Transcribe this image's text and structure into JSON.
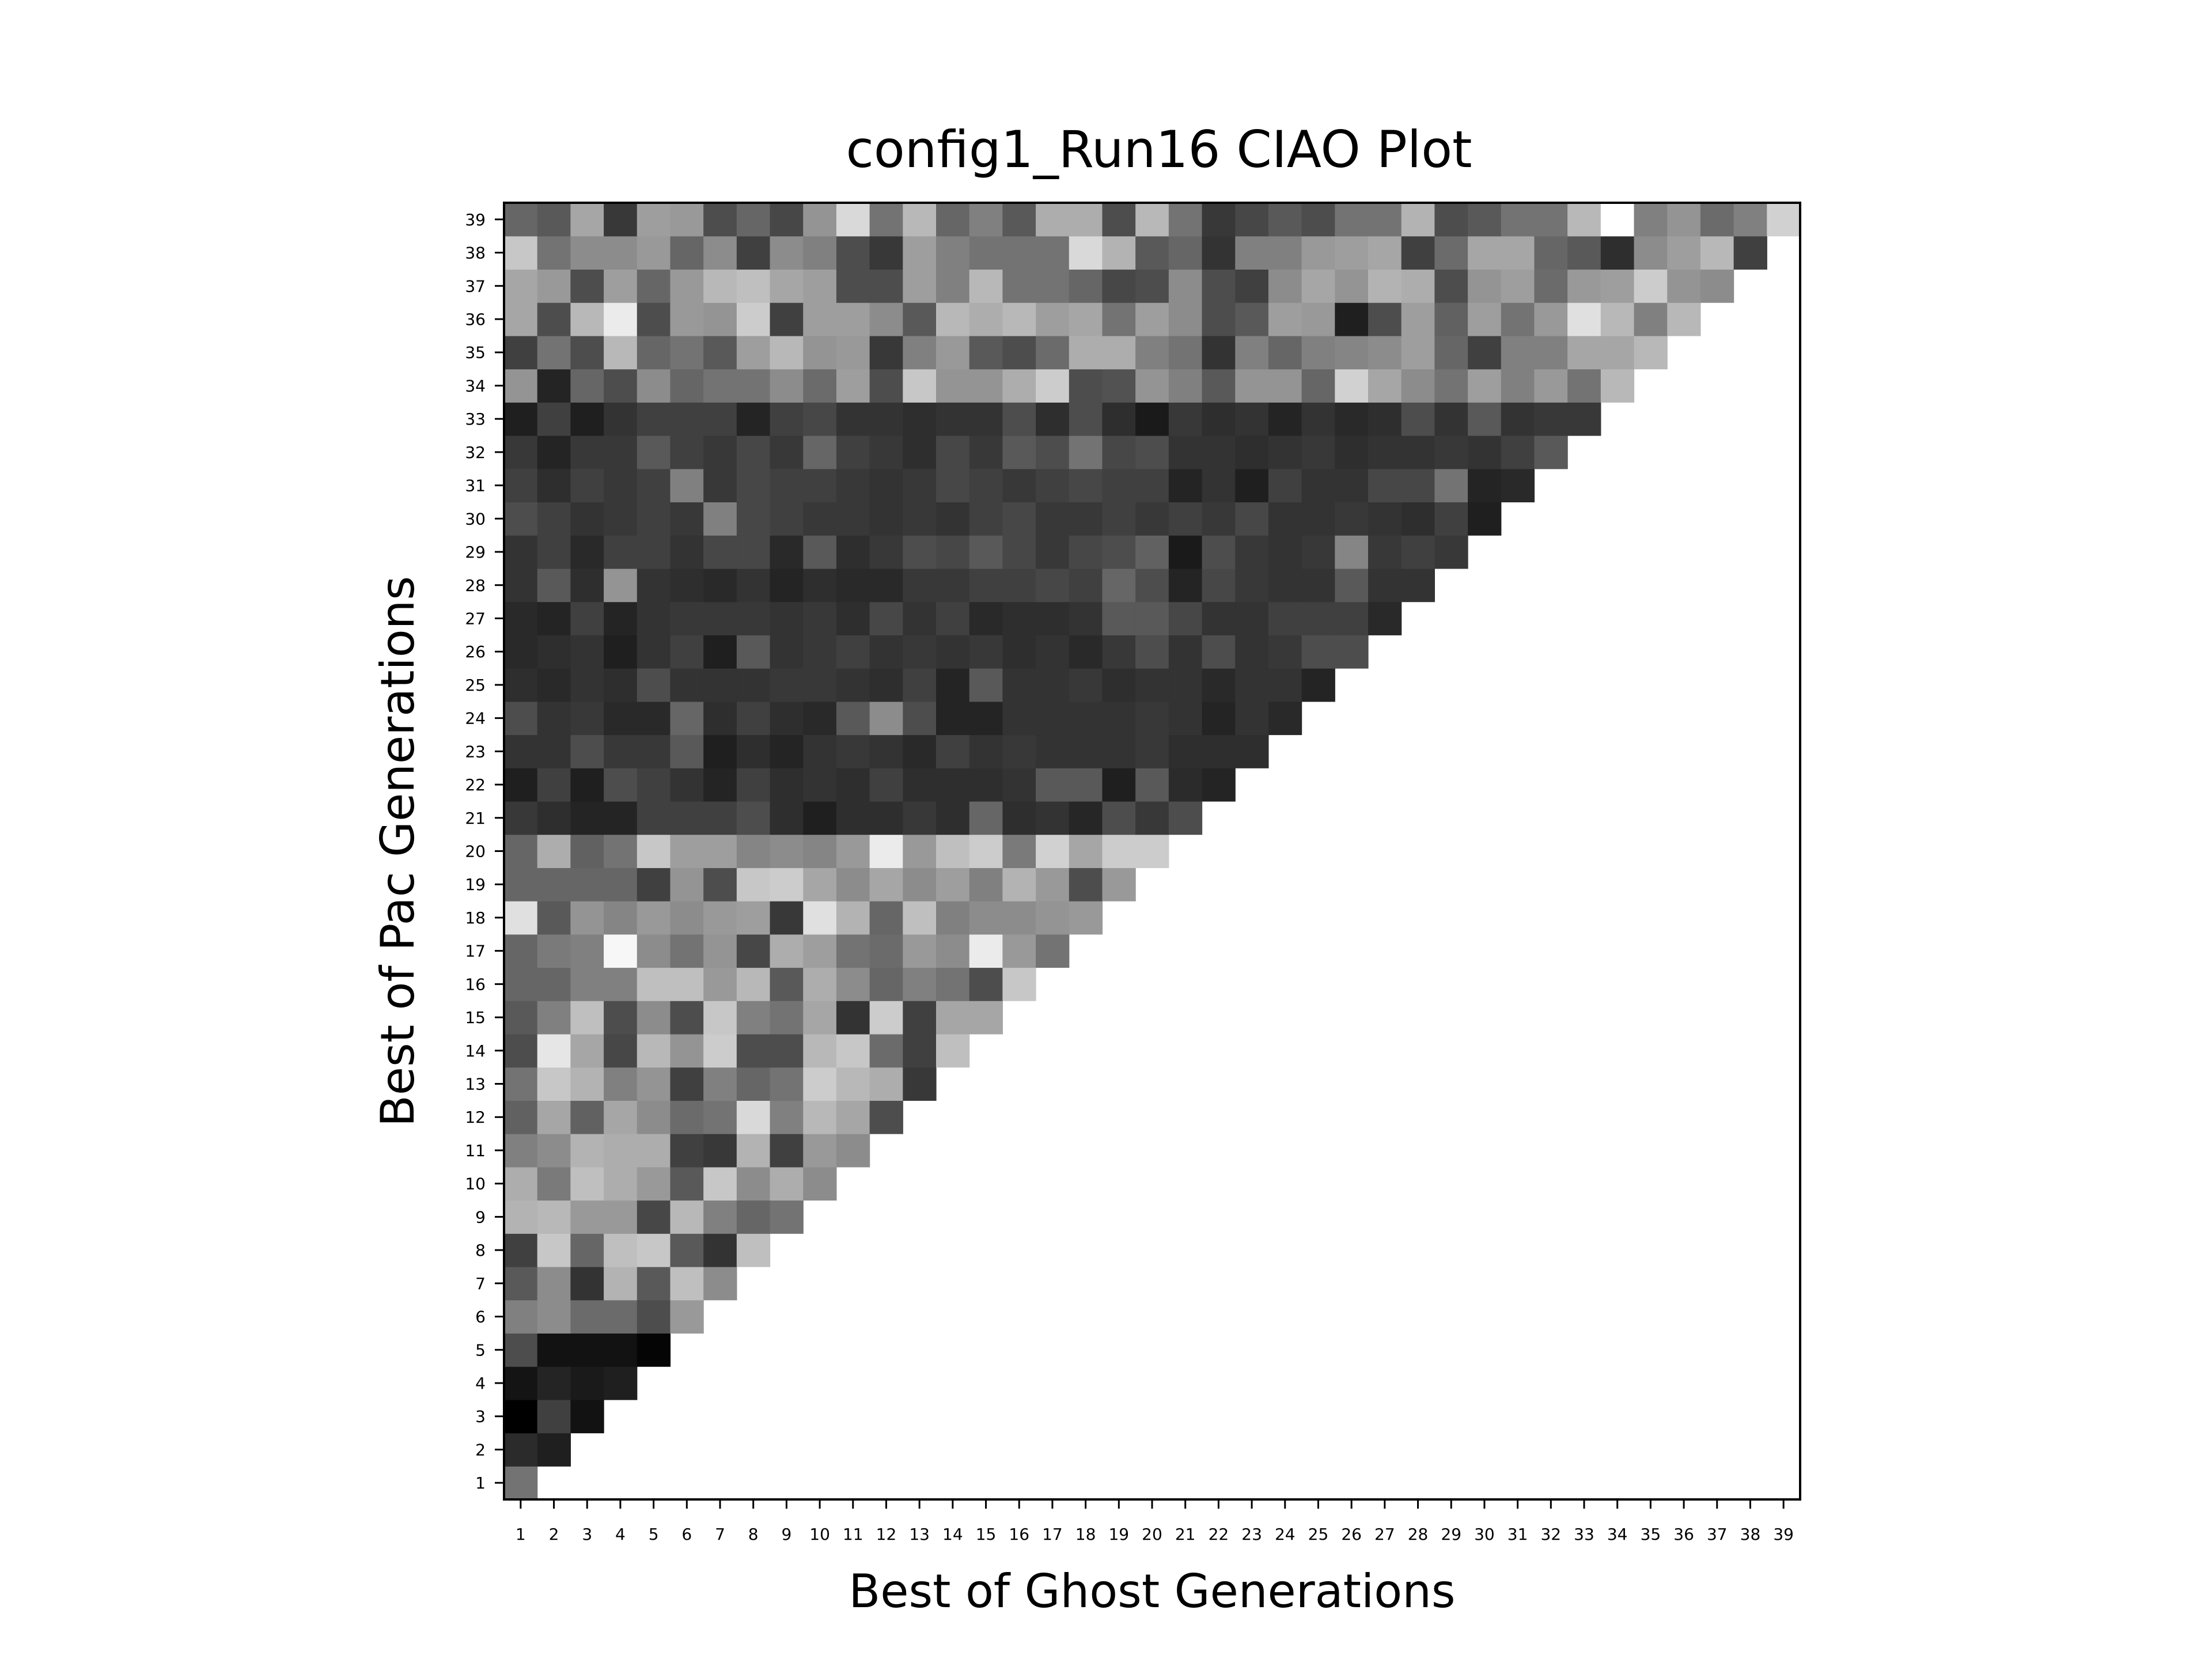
{
  "chart_data": {
    "type": "heatmap",
    "title": "config1_Run16 CIAO Plot",
    "xlabel": "Best of Ghost Generations",
    "ylabel": "Best of Pac Generations",
    "x_ticks": [
      "1",
      "2",
      "3",
      "4",
      "5",
      "6",
      "7",
      "8",
      "9",
      "10",
      "11",
      "12",
      "13",
      "14",
      "15",
      "16",
      "17",
      "18",
      "19",
      "20",
      "21",
      "22",
      "23",
      "24",
      "25",
      "26",
      "27",
      "28",
      "29",
      "30",
      "31",
      "32",
      "33",
      "34",
      "35",
      "36",
      "37",
      "38",
      "39"
    ],
    "y_ticks": [
      "1",
      "2",
      "3",
      "4",
      "5",
      "6",
      "7",
      "8",
      "9",
      "10",
      "11",
      "12",
      "13",
      "14",
      "15",
      "16",
      "17",
      "18",
      "19",
      "20",
      "21",
      "22",
      "23",
      "24",
      "25",
      "26",
      "27",
      "28",
      "29",
      "30",
      "31",
      "32",
      "33",
      "34",
      "35",
      "36",
      "37",
      "38",
      "39"
    ],
    "colormap": "grayscale (black = low, white = high)",
    "grid": false,
    "shape": "lower-left triangle; cell (ghost x, pac y) shown for x <= y",
    "rows": [
      {
        "pac": 1,
        "values": [
          0.45
        ]
      },
      {
        "pac": 2,
        "values": [
          0.17,
          0.12
        ]
      },
      {
        "pac": 3,
        "values": [
          0.0,
          0.25,
          0.07
        ]
      },
      {
        "pac": 4,
        "values": [
          0.08,
          0.14,
          0.1,
          0.12
        ]
      },
      {
        "pac": 5,
        "values": [
          0.3,
          0.07,
          0.07,
          0.07,
          0.02
        ]
      },
      {
        "pac": 6,
        "values": [
          0.5,
          0.55,
          0.42,
          0.42,
          0.3,
          0.6
        ]
      },
      {
        "pac": 7,
        "values": [
          0.35,
          0.55,
          0.2,
          0.7,
          0.35,
          0.75,
          0.55
        ]
      },
      {
        "pac": 8,
        "values": [
          0.25,
          0.78,
          0.4,
          0.75,
          0.78,
          0.35,
          0.2,
          0.75
        ]
      },
      {
        "pac": 9,
        "values": [
          0.7,
          0.72,
          0.6,
          0.6,
          0.28,
          0.72,
          0.5,
          0.4,
          0.45
        ]
      },
      {
        "pac": 10,
        "values": [
          0.68,
          0.48,
          0.75,
          0.68,
          0.6,
          0.35,
          0.78,
          0.55,
          0.68,
          0.55
        ]
      },
      {
        "pac": 11,
        "values": [
          0.5,
          0.55,
          0.7,
          0.68,
          0.68,
          0.25,
          0.22,
          0.7,
          0.25,
          0.6,
          0.55
        ]
      },
      {
        "pac": 12,
        "values": [
          0.38,
          0.65,
          0.38,
          0.65,
          0.55,
          0.42,
          0.45,
          0.85,
          0.5,
          0.72,
          0.65,
          0.3
        ]
      },
      {
        "pac": 13,
        "values": [
          0.45,
          0.78,
          0.7,
          0.5,
          0.58,
          0.25,
          0.5,
          0.4,
          0.45,
          0.8,
          0.72,
          0.68,
          0.22
        ]
      },
      {
        "pac": 14,
        "values": [
          0.3,
          0.9,
          0.65,
          0.28,
          0.72,
          0.58,
          0.8,
          0.3,
          0.3,
          0.72,
          0.78,
          0.42,
          0.25,
          0.75
        ]
      },
      {
        "pac": 15,
        "values": [
          0.35,
          0.5,
          0.75,
          0.3,
          0.55,
          0.3,
          0.78,
          0.5,
          0.45,
          0.65,
          0.2,
          0.8,
          0.25,
          0.65,
          0.65
        ]
      },
      {
        "pac": 16,
        "values": [
          0.4,
          0.4,
          0.5,
          0.5,
          0.75,
          0.75,
          0.6,
          0.72,
          0.35,
          0.68,
          0.55,
          0.4,
          0.5,
          0.45,
          0.3,
          0.78
        ]
      },
      {
        "pac": 17,
        "values": [
          0.4,
          0.48,
          0.5,
          0.97,
          0.55,
          0.45,
          0.58,
          0.28,
          0.68,
          0.62,
          0.45,
          0.42,
          0.6,
          0.55,
          0.92,
          0.6,
          0.45
        ]
      },
      {
        "pac": 18,
        "values": [
          0.88,
          0.35,
          0.58,
          0.52,
          0.6,
          0.55,
          0.6,
          0.62,
          0.22,
          0.88,
          0.7,
          0.4,
          0.75,
          0.5,
          0.55,
          0.55,
          0.58,
          0.6
        ]
      },
      {
        "pac": 19,
        "values": [
          0.4,
          0.4,
          0.4,
          0.4,
          0.25,
          0.58,
          0.3,
          0.78,
          0.8,
          0.65,
          0.55,
          0.65,
          0.55,
          0.62,
          0.5,
          0.7,
          0.6,
          0.3,
          0.6
        ]
      },
      {
        "pac": 20,
        "values": [
          0.4,
          0.68,
          0.38,
          0.45,
          0.78,
          0.62,
          0.62,
          0.52,
          0.55,
          0.52,
          0.6,
          0.92,
          0.6,
          0.75,
          0.8,
          0.48,
          0.82,
          0.65,
          0.8,
          0.8
        ]
      },
      {
        "pac": 21,
        "values": [
          0.22,
          0.18,
          0.14,
          0.14,
          0.25,
          0.25,
          0.25,
          0.3,
          0.18,
          0.12,
          0.18,
          0.18,
          0.22,
          0.18,
          0.4,
          0.18,
          0.2,
          0.15,
          0.3,
          0.22,
          0.3
        ]
      },
      {
        "pac": 22,
        "values": [
          0.12,
          0.25,
          0.12,
          0.3,
          0.25,
          0.2,
          0.14,
          0.25,
          0.18,
          0.2,
          0.18,
          0.25,
          0.18,
          0.18,
          0.18,
          0.2,
          0.35,
          0.35,
          0.12,
          0.35,
          0.17,
          0.14
        ]
      },
      {
        "pac": 23,
        "values": [
          0.2,
          0.2,
          0.3,
          0.22,
          0.22,
          0.35,
          0.12,
          0.18,
          0.14,
          0.2,
          0.22,
          0.2,
          0.16,
          0.25,
          0.2,
          0.22,
          0.2,
          0.2,
          0.2,
          0.22,
          0.18,
          0.18,
          0.18
        ]
      },
      {
        "pac": 24,
        "values": [
          0.3,
          0.2,
          0.22,
          0.16,
          0.16,
          0.4,
          0.18,
          0.25,
          0.18,
          0.16,
          0.35,
          0.55,
          0.3,
          0.14,
          0.14,
          0.2,
          0.2,
          0.2,
          0.2,
          0.22,
          0.2,
          0.14,
          0.2,
          0.16
        ]
      },
      {
        "pac": 25,
        "values": [
          0.18,
          0.16,
          0.2,
          0.18,
          0.3,
          0.2,
          0.2,
          0.2,
          0.22,
          0.22,
          0.2,
          0.18,
          0.25,
          0.14,
          0.35,
          0.2,
          0.2,
          0.22,
          0.18,
          0.2,
          0.2,
          0.16,
          0.2,
          0.2,
          0.14
        ]
      },
      {
        "pac": 26,
        "values": [
          0.16,
          0.18,
          0.2,
          0.12,
          0.2,
          0.25,
          0.12,
          0.35,
          0.2,
          0.22,
          0.25,
          0.2,
          0.22,
          0.2,
          0.22,
          0.18,
          0.2,
          0.16,
          0.22,
          0.3,
          0.2,
          0.3,
          0.2,
          0.22,
          0.3,
          0.3
        ]
      },
      {
        "pac": 27,
        "values": [
          0.16,
          0.14,
          0.25,
          0.14,
          0.2,
          0.22,
          0.22,
          0.22,
          0.2,
          0.22,
          0.18,
          0.28,
          0.2,
          0.25,
          0.16,
          0.18,
          0.18,
          0.2,
          0.35,
          0.35,
          0.28,
          0.2,
          0.2,
          0.25,
          0.25,
          0.25,
          0.16
        ]
      },
      {
        "pac": 28,
        "values": [
          0.2,
          0.35,
          0.18,
          0.58,
          0.2,
          0.18,
          0.16,
          0.2,
          0.14,
          0.18,
          0.16,
          0.16,
          0.22,
          0.22,
          0.25,
          0.25,
          0.28,
          0.25,
          0.4,
          0.3,
          0.14,
          0.28,
          0.22,
          0.2,
          0.2,
          0.35,
          0.2,
          0.2
        ]
      },
      {
        "pac": 29,
        "values": [
          0.2,
          0.25,
          0.16,
          0.25,
          0.25,
          0.2,
          0.28,
          0.28,
          0.16,
          0.35,
          0.18,
          0.22,
          0.3,
          0.28,
          0.35,
          0.28,
          0.22,
          0.28,
          0.3,
          0.38,
          0.1,
          0.3,
          0.22,
          0.2,
          0.22,
          0.52,
          0.22,
          0.25,
          0.22
        ]
      },
      {
        "pac": 30,
        "values": [
          0.3,
          0.25,
          0.2,
          0.22,
          0.25,
          0.22,
          0.5,
          0.28,
          0.25,
          0.22,
          0.22,
          0.2,
          0.22,
          0.2,
          0.25,
          0.28,
          0.22,
          0.22,
          0.25,
          0.22,
          0.25,
          0.22,
          0.28,
          0.2,
          0.2,
          0.22,
          0.2,
          0.18,
          0.25,
          0.12
        ]
      },
      {
        "pac": 31,
        "values": [
          0.25,
          0.18,
          0.25,
          0.22,
          0.25,
          0.5,
          0.22,
          0.28,
          0.25,
          0.25,
          0.22,
          0.2,
          0.22,
          0.28,
          0.25,
          0.22,
          0.25,
          0.28,
          0.25,
          0.25,
          0.14,
          0.2,
          0.12,
          0.25,
          0.2,
          0.2,
          0.28,
          0.28,
          0.45,
          0.14,
          0.16
        ]
      },
      {
        "pac": 32,
        "values": [
          0.22,
          0.14,
          0.22,
          0.22,
          0.35,
          0.25,
          0.22,
          0.28,
          0.22,
          0.4,
          0.25,
          0.22,
          0.18,
          0.28,
          0.22,
          0.35,
          0.3,
          0.45,
          0.28,
          0.3,
          0.2,
          0.2,
          0.18,
          0.2,
          0.22,
          0.18,
          0.2,
          0.2,
          0.22,
          0.2,
          0.25,
          0.35
        ]
      },
      {
        "pac": 33,
        "values": [
          0.12,
          0.25,
          0.12,
          0.2,
          0.25,
          0.25,
          0.25,
          0.14,
          0.25,
          0.28,
          0.2,
          0.2,
          0.18,
          0.2,
          0.2,
          0.3,
          0.18,
          0.3,
          0.18,
          0.1,
          0.22,
          0.18,
          0.2,
          0.14,
          0.2,
          0.16,
          0.18,
          0.3,
          0.2,
          0.35,
          0.2,
          0.22,
          0.22
        ]
      },
      {
        "pac": 34,
        "values": [
          0.58,
          0.14,
          0.4,
          0.3,
          0.55,
          0.4,
          0.45,
          0.45,
          0.55,
          0.42,
          0.62,
          0.3,
          0.78,
          0.58,
          0.58,
          0.68,
          0.8,
          0.3,
          0.32,
          0.58,
          0.5,
          0.35,
          0.58,
          0.58,
          0.4,
          0.82,
          0.65,
          0.55,
          0.45,
          0.62,
          0.5,
          0.6,
          0.45,
          0.72
        ]
      },
      {
        "pac": 35,
        "values": [
          0.25,
          0.45,
          0.3,
          0.72,
          0.4,
          0.45,
          0.35,
          0.62,
          0.72,
          0.58,
          0.6,
          0.22,
          0.5,
          0.6,
          0.35,
          0.3,
          0.42,
          0.68,
          0.68,
          0.5,
          0.45,
          0.2,
          0.5,
          0.4,
          0.5,
          0.52,
          0.55,
          0.62,
          0.4,
          0.25,
          0.5,
          0.5,
          0.65,
          0.65,
          0.72
        ]
      },
      {
        "pac": 36,
        "values": [
          0.65,
          0.3,
          0.72,
          0.92,
          0.3,
          0.6,
          0.58,
          0.8,
          0.25,
          0.62,
          0.62,
          0.55,
          0.35,
          0.72,
          0.68,
          0.72,
          0.62,
          0.65,
          0.45,
          0.62,
          0.55,
          0.3,
          0.35,
          0.62,
          0.6,
          0.12,
          0.3,
          0.62,
          0.38,
          0.62,
          0.45,
          0.6,
          0.88,
          0.72,
          0.5,
          0.72
        ]
      },
      {
        "pac": 37,
        "values": [
          0.65,
          0.6,
          0.3,
          0.62,
          0.4,
          0.6,
          0.72,
          0.75,
          0.65,
          0.62,
          0.3,
          0.3,
          0.62,
          0.5,
          0.72,
          0.45,
          0.45,
          0.4,
          0.28,
          0.3,
          0.55,
          0.3,
          0.25,
          0.55,
          0.65,
          0.58,
          0.7,
          0.68,
          0.3,
          0.58,
          0.62,
          0.42,
          0.6,
          0.62,
          0.8,
          0.58,
          0.55
        ]
      },
      {
        "pac": 38,
        "values": [
          0.78,
          0.45,
          0.55,
          0.55,
          0.6,
          0.4,
          0.55,
          0.25,
          0.55,
          0.5,
          0.3,
          0.22,
          0.62,
          0.5,
          0.45,
          0.45,
          0.45,
          0.85,
          0.7,
          0.35,
          0.4,
          0.2,
          0.5,
          0.5,
          0.6,
          0.62,
          0.65,
          0.25,
          0.42,
          0.65,
          0.65,
          0.4,
          0.35,
          0.18,
          0.55,
          0.62,
          0.72,
          0.25
        ]
      },
      {
        "pac": 39,
        "values": [
          0.4,
          0.35,
          0.65,
          0.22,
          0.62,
          0.6,
          0.3,
          0.4,
          0.28,
          0.58,
          0.85,
          0.45,
          0.72,
          0.4,
          0.5,
          0.35,
          0.68,
          0.68,
          0.3,
          0.72,
          0.45,
          0.22,
          0.28,
          0.35,
          0.3,
          0.45,
          0.45,
          0.7,
          0.3,
          0.35,
          0.45,
          0.45,
          0.72,
          1.0,
          0.5,
          0.58,
          0.42,
          0.5,
          0.82
        ]
      }
    ]
  }
}
